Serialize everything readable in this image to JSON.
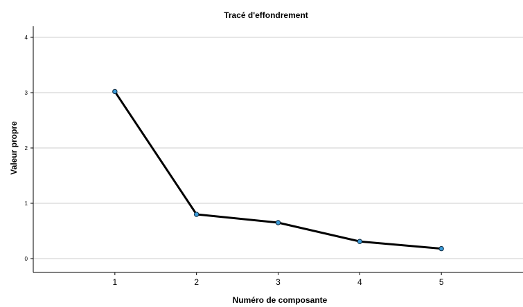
{
  "chart_data": {
    "type": "line",
    "title": "Tracé d'effondrement",
    "xlabel": "Numéro de composante",
    "ylabel": "Valeur propre",
    "x": [
      1,
      2,
      3,
      4,
      5
    ],
    "series": [
      {
        "values": [
          3.02,
          0.8,
          0.65,
          0.31,
          0.18
        ]
      }
    ],
    "xticks": [
      "1",
      "2",
      "3",
      "4",
      "5"
    ],
    "yticks": [
      "0",
      "1",
      "2",
      "3",
      "4"
    ],
    "xlim": [
      0,
      6
    ],
    "ylim": [
      -0.25,
      4.2
    ],
    "grid": true,
    "colors": {
      "line": "#000000",
      "marker_fill": "#3b9bd8",
      "marker_stroke": "#0d2a40",
      "grid": "#cccccc",
      "axis": "#000000"
    }
  }
}
